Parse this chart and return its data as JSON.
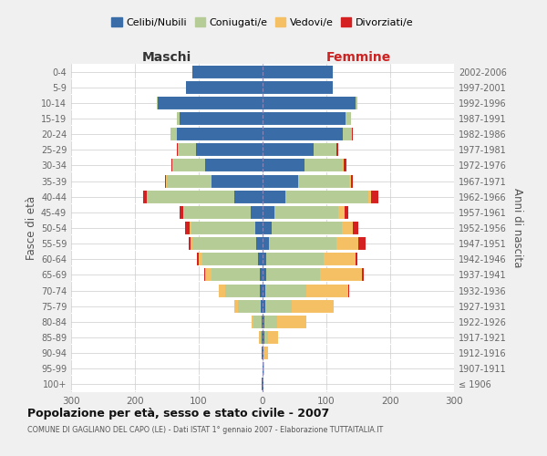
{
  "age_groups": [
    "100+",
    "95-99",
    "90-94",
    "85-89",
    "80-84",
    "75-79",
    "70-74",
    "65-69",
    "60-64",
    "55-59",
    "50-54",
    "45-49",
    "40-44",
    "35-39",
    "30-34",
    "25-29",
    "20-24",
    "15-19",
    "10-14",
    "5-9",
    "0-4"
  ],
  "birth_years": [
    "≤ 1906",
    "1907-1911",
    "1912-1916",
    "1917-1921",
    "1922-1926",
    "1927-1931",
    "1932-1936",
    "1937-1941",
    "1942-1946",
    "1947-1951",
    "1952-1956",
    "1957-1961",
    "1962-1966",
    "1967-1971",
    "1972-1976",
    "1977-1981",
    "1982-1986",
    "1987-1991",
    "1992-1996",
    "1997-2001",
    "2002-2006"
  ],
  "males": {
    "celibi": [
      1,
      0,
      1,
      1,
      2,
      3,
      4,
      5,
      7,
      10,
      12,
      18,
      45,
      80,
      90,
      105,
      135,
      130,
      165,
      120,
      110
    ],
    "coniugati": [
      0,
      0,
      1,
      4,
      12,
      35,
      55,
      75,
      88,
      100,
      100,
      105,
      135,
      70,
      50,
      28,
      10,
      4,
      1,
      0,
      0
    ],
    "vedovi": [
      0,
      0,
      0,
      1,
      3,
      6,
      10,
      10,
      5,
      3,
      2,
      2,
      2,
      1,
      1,
      0,
      0,
      0,
      0,
      0,
      0
    ],
    "divorziati": [
      0,
      0,
      0,
      0,
      0,
      0,
      0,
      1,
      3,
      3,
      8,
      5,
      5,
      2,
      2,
      1,
      0,
      0,
      0,
      0,
      0
    ]
  },
  "females": {
    "nubili": [
      1,
      1,
      1,
      3,
      3,
      4,
      4,
      5,
      6,
      10,
      14,
      18,
      35,
      55,
      65,
      80,
      125,
      130,
      145,
      110,
      110
    ],
    "coniugate": [
      0,
      0,
      2,
      6,
      20,
      42,
      65,
      85,
      90,
      105,
      110,
      100,
      130,
      80,
      60,
      35,
      15,
      8,
      3,
      0,
      0
    ],
    "vedove": [
      1,
      2,
      5,
      15,
      45,
      65,
      65,
      65,
      50,
      35,
      18,
      10,
      5,
      3,
      2,
      1,
      0,
      0,
      0,
      0,
      0
    ],
    "divorziate": [
      0,
      0,
      0,
      0,
      0,
      0,
      1,
      3,
      3,
      12,
      8,
      6,
      12,
      3,
      5,
      2,
      1,
      0,
      0,
      0,
      0
    ]
  },
  "colors": {
    "celibi": "#3a6ca8",
    "coniugati": "#b5cc96",
    "vedovi": "#f5c063",
    "divorziati": "#d42020"
  },
  "legend_labels": [
    "Celibi/Nubili",
    "Coniugati/e",
    "Vedovi/e",
    "Divorziati/e"
  ],
  "title": "Popolazione per età, sesso e stato civile - 2007",
  "subtitle": "COMUNE DI GAGLIANO DEL CAPO (LE) - Dati ISTAT 1° gennaio 2007 - Elaborazione TUTTAITALIA.IT",
  "xlabel_left": "Maschi",
  "xlabel_right": "Femmine",
  "ylabel_left": "Fasce di età",
  "ylabel_right": "Anni di nascita",
  "xlim": 300,
  "bg_color": "#f0f0f0",
  "plot_bg": "#ffffff"
}
